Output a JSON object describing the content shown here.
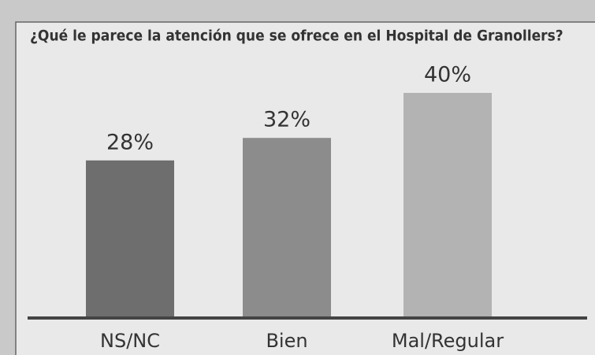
{
  "chart_data": {
    "type": "bar",
    "title": "¿Qué le parece la atención que se ofrece en el Hospital de Granollers?",
    "categories": [
      "NS/NC",
      "Bien",
      "Mal/Regular"
    ],
    "values": [
      28,
      32,
      40
    ],
    "value_labels": [
      "28%",
      "32%",
      "40%"
    ],
    "colors": [
      "#6e6e6e",
      "#8c8c8c",
      "#b3b3b3"
    ]
  }
}
